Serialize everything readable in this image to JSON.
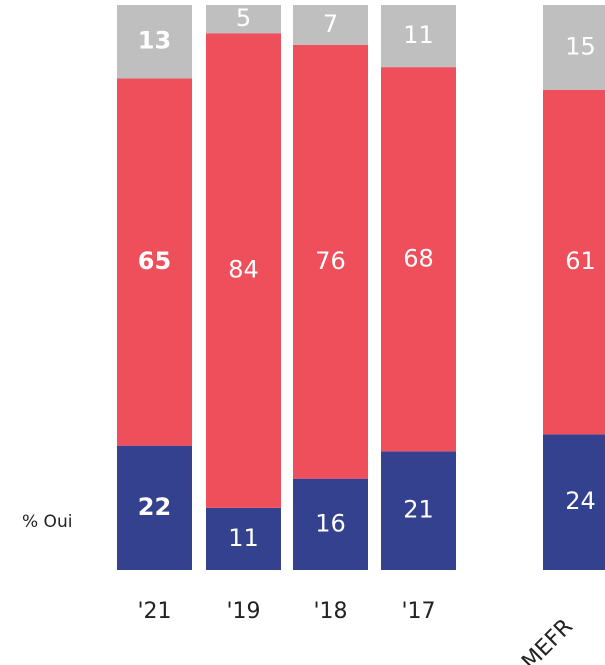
{
  "chart_data": {
    "type": "stacked_bar",
    "categories": [
      "'21",
      "'19",
      "'18",
      "'17",
      "MEFR"
    ],
    "series": [
      {
        "name": "% Oui",
        "color": "#34418f",
        "values": [
          22,
          11,
          16,
          21,
          24
        ]
      },
      {
        "color": "#ee4f5b",
        "values": [
          65,
          84,
          76,
          68,
          61
        ]
      },
      {
        "color": "#bfbfbf",
        "values": [
          13,
          5,
          7,
          11,
          15
        ]
      }
    ]
  }
}
